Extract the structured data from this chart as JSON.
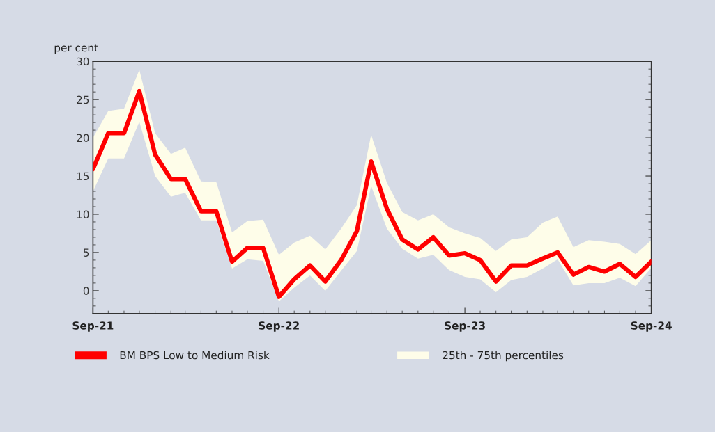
{
  "chart_data": {
    "type": "line",
    "ylabel": "per cent",
    "x": [
      "2021-09",
      "2021-10",
      "2021-11",
      "2021-12",
      "2022-01",
      "2022-02",
      "2022-03",
      "2022-04",
      "2022-05",
      "2022-06",
      "2022-07",
      "2022-08",
      "2022-09",
      "2022-10",
      "2022-11",
      "2022-12",
      "2023-01",
      "2023-02",
      "2023-03",
      "2023-04",
      "2023-05",
      "2023-06",
      "2023-07",
      "2023-08",
      "2023-09",
      "2023-10",
      "2023-11",
      "2023-12",
      "2024-01",
      "2024-02",
      "2024-03",
      "2024-04",
      "2024-05",
      "2024-06",
      "2024-07",
      "2024-08",
      "2024-09"
    ],
    "series": [
      {
        "name": "BM BPS Low to Medium Risk",
        "color": "#ff0000",
        "values": [
          15.9,
          20.6,
          20.6,
          26.1,
          17.8,
          14.6,
          14.6,
          10.4,
          10.4,
          3.8,
          5.6,
          5.6,
          -0.8,
          1.5,
          3.3,
          1.2,
          4.0,
          7.8,
          16.9,
          10.7,
          6.7,
          5.4,
          7.0,
          4.6,
          4.9,
          4.0,
          1.2,
          3.3,
          3.3,
          4.2,
          5.0,
          2.1,
          3.1,
          2.5,
          3.5,
          1.8,
          3.8
        ],
        "lower": [
          13.0,
          17.3,
          17.3,
          22.1,
          15.0,
          12.3,
          12.8,
          9.2,
          9.2,
          2.9,
          4.1,
          3.9,
          -1.4,
          0.4,
          2.0,
          0.0,
          2.6,
          5.2,
          13.7,
          8.1,
          5.5,
          4.2,
          4.7,
          2.7,
          1.8,
          1.5,
          -0.2,
          1.4,
          1.8,
          2.9,
          4.1,
          0.7,
          1.0,
          1.0,
          1.7,
          0.6,
          3.0
        ],
        "upper": [
          20.0,
          23.5,
          23.8,
          28.9,
          20.6,
          17.9,
          18.7,
          14.3,
          14.2,
          7.6,
          9.1,
          9.3,
          4.7,
          6.3,
          7.2,
          5.4,
          8.1,
          11.2,
          20.4,
          14.1,
          10.3,
          9.2,
          10.0,
          8.3,
          7.5,
          6.9,
          5.2,
          6.7,
          7.0,
          8.9,
          9.7,
          5.7,
          6.6,
          6.4,
          6.1,
          4.8,
          6.6
        ]
      }
    ],
    "annotations": [
      "25th - 75th percentiles"
    ],
    "xlim": [
      "2021-09",
      "2024-09"
    ],
    "xticks": [
      {
        "value": "2021-09",
        "label": "Sep-21"
      },
      {
        "value": "2022-09",
        "label": "Sep-22"
      },
      {
        "value": "2023-09",
        "label": "Sep-23"
      },
      {
        "value": "2024-09",
        "label": "Sep-24"
      }
    ],
    "ylim": [
      -3,
      30
    ],
    "yticks": [
      0,
      5,
      10,
      15,
      20,
      25,
      30
    ],
    "grid": false,
    "legend": "bottom",
    "marker": "none",
    "line_style": "solid"
  }
}
